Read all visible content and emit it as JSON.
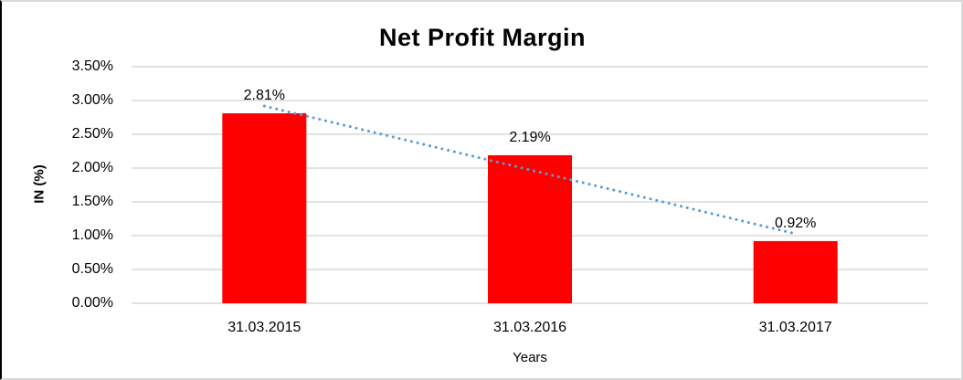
{
  "chart_data": {
    "type": "bar",
    "title": "Net Profit Margin",
    "categories": [
      "31.03.2015",
      "31.03.2016",
      "31.03.2017"
    ],
    "values": [
      2.81,
      2.19,
      0.92
    ],
    "data_labels": [
      "2.81%",
      "2.19%",
      "0.92%"
    ],
    "xlabel": "Years",
    "ylabel": "IN (%)",
    "ylim": [
      0,
      3.5
    ],
    "ytick_step": 0.5,
    "ytick_labels": [
      "0.00%",
      "0.50%",
      "1.00%",
      "1.50%",
      "2.00%",
      "2.50%",
      "3.00%",
      "3.50%"
    ],
    "bar_color": "#ff0000",
    "gridline_color": "#d9d9d9",
    "axis_line_color": "#d9d9d9",
    "trendline": {
      "type": "linear",
      "style": "dotted",
      "color": "#5b9bd5",
      "endpoint_values": [
        2.918,
        1.028
      ]
    },
    "legend": "none",
    "grid": "horizontal"
  }
}
